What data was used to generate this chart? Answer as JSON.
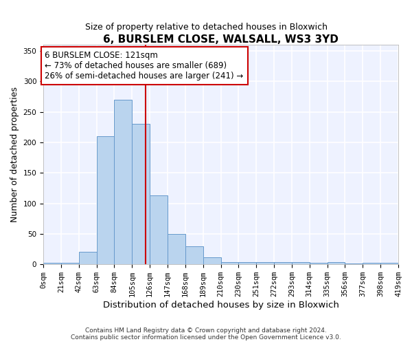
{
  "title": "6, BURSLEM CLOSE, WALSALL, WS3 3YD",
  "subtitle": "Size of property relative to detached houses in Bloxwich",
  "xlabel": "Distribution of detached houses by size in Bloxwich",
  "ylabel": "Number of detached properties",
  "bar_color": "#bad4ee",
  "bar_edge_color": "#6699cc",
  "bins": [
    0,
    21,
    42,
    63,
    84,
    105,
    126,
    147,
    168,
    189,
    210,
    231,
    252,
    273,
    294,
    315,
    336,
    357,
    378,
    399,
    420
  ],
  "counts": [
    2,
    2,
    20,
    210,
    270,
    230,
    113,
    50,
    30,
    11,
    4,
    4,
    4,
    4,
    4,
    3,
    4,
    1,
    2,
    2
  ],
  "vline_x": 121,
  "vline_color": "#cc0000",
  "annotation_line1": "6 BURSLEM CLOSE: 121sqm",
  "annotation_line2": "← 73% of detached houses are smaller (689)",
  "annotation_line3": "26% of semi-detached houses are larger (241) →",
  "annotation_box_color": "white",
  "annotation_box_edge": "#cc0000",
  "ylim": [
    0,
    360
  ],
  "yticks": [
    0,
    50,
    100,
    150,
    200,
    250,
    300,
    350
  ],
  "xtick_labels": [
    "0sqm",
    "21sqm",
    "42sqm",
    "63sqm",
    "84sqm",
    "105sqm",
    "126sqm",
    "147sqm",
    "168sqm",
    "189sqm",
    "210sqm",
    "230sqm",
    "251sqm",
    "272sqm",
    "293sqm",
    "314sqm",
    "335sqm",
    "356sqm",
    "377sqm",
    "398sqm",
    "419sqm"
  ],
  "footer_text": "Contains HM Land Registry data © Crown copyright and database right 2024.\nContains public sector information licensed under the Open Government Licence v3.0.",
  "background_color": "#eef2ff",
  "grid_color": "white"
}
